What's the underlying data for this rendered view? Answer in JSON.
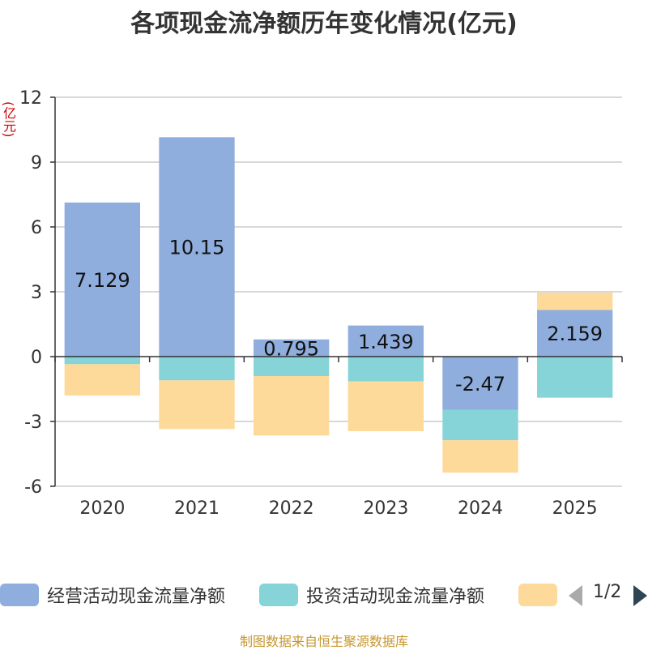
{
  "title": "各项现金流净额历年变化情况(亿元)",
  "y_unit": "(亿元)",
  "footer": "制图数据来自恒生聚源数据库",
  "legend": {
    "items": [
      {
        "name": "经营活动现金流量净额",
        "color": "#8faedd"
      },
      {
        "name": "投资活动现金流量净额",
        "color": "#86d4d8"
      },
      {
        "name": "",
        "color": "#fdd99a"
      }
    ],
    "page_indicator": "1/2"
  },
  "chart_data": {
    "type": "bar",
    "stacked": true,
    "categories": [
      "2020",
      "2021",
      "2022",
      "2023",
      "2024",
      "2025"
    ],
    "series": [
      {
        "name": "经营活动现金流量净额",
        "color": "#8faedd",
        "values": [
          7.129,
          10.15,
          0.795,
          1.439,
          -2.47,
          2.159
        ],
        "labels_shown": true
      },
      {
        "name": "投资活动现金流量净额",
        "color": "#86d4d8",
        "values": [
          -0.35,
          -1.1,
          -0.9,
          -1.15,
          -1.4,
          -1.9
        ],
        "labels_shown": false
      },
      {
        "name": "",
        "color": "#fdd99a",
        "values": [
          -1.45,
          -2.25,
          -2.75,
          -2.3,
          -1.5,
          0.8
        ],
        "labels_shown": false
      }
    ],
    "y_ticks": [
      12,
      9,
      6,
      3,
      0,
      -3,
      -6
    ],
    "ylim": [
      -6,
      12
    ],
    "grid": true,
    "legend_position": "bottom"
  }
}
